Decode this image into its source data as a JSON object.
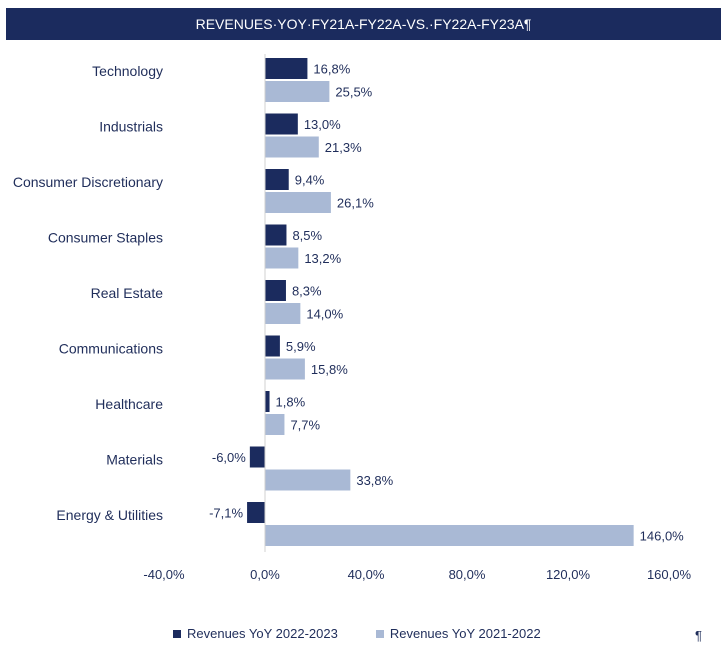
{
  "chart_data": {
    "type": "bar",
    "orientation": "horizontal",
    "title": "REVENUES·YOY·FY21A-FY22A-VS.·FY22A-FY23A¶",
    "categories": [
      "Technology",
      "Industrials",
      "Consumer Discretionary",
      "Consumer Staples",
      "Real Estate",
      "Communications",
      "Healthcare",
      "Materials",
      "Energy & Utilities"
    ],
    "series": [
      {
        "name": "Revenues YoY 2022-2023",
        "color": "#1b2b5e",
        "values": [
          16.8,
          13.0,
          9.4,
          8.5,
          8.3,
          5.9,
          1.8,
          -6.0,
          -7.1
        ],
        "labels": [
          "16,8%",
          "13,0%",
          "9,4%",
          "8,5%",
          "8,3%",
          "5,9%",
          "1,8%",
          "-6,0%",
          "-7,1%"
        ]
      },
      {
        "name": "Revenues YoY 2021-2022",
        "color": "#a9b9d5",
        "values": [
          25.5,
          21.3,
          26.1,
          13.2,
          14.0,
          15.8,
          7.7,
          33.8,
          146.0
        ],
        "labels": [
          "25,5%",
          "21,3%",
          "26,1%",
          "13,2%",
          "14,0%",
          "15,8%",
          "7,7%",
          "33,8%",
          "146,0%"
        ]
      }
    ],
    "xlim": [
      -40,
      160
    ],
    "xticks": [
      -40,
      0,
      40,
      80,
      120,
      160
    ],
    "xtick_labels": [
      "-40,0%",
      "0,0%",
      "40,0%",
      "80,0%",
      "120,0%",
      "160,0%"
    ],
    "grid": false,
    "legend_position": "bottom"
  },
  "pilcrow": "¶"
}
